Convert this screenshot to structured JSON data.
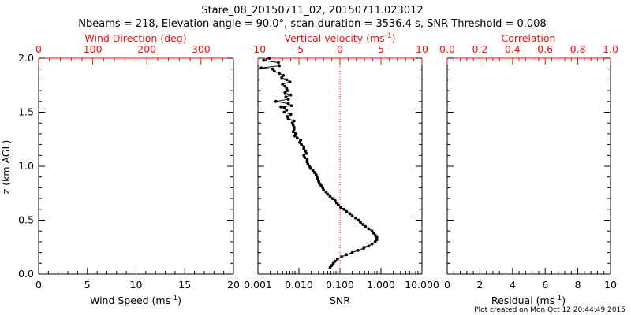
{
  "title_line1": "Stare_08_20150711_02, 20150711.023012",
  "title_line2": "Nbeams = 218, Elevation angle = 90.0°, scan duration = 3536.4 s, SNR Threshold = 0.008",
  "footer": "Plot created on Mon Oct 12 20:44:49 2015",
  "colors": {
    "axis": "#000000",
    "top_axis": "#ee1111",
    "zero_line": "#ee1111",
    "profile": "#000000"
  },
  "chart_data": [
    {
      "type": "line",
      "panel": "left",
      "ylabel": "z (km AGL)",
      "ylim": [
        0,
        2.0
      ],
      "yticks": [
        "0.0",
        "0.5",
        "1.0",
        "1.5",
        "2.0"
      ],
      "xlabel": "Wind Speed (ms",
      "xlabel_sup": "-1",
      "xlabel_tail": ")",
      "xlim": [
        0,
        20
      ],
      "xticks": [
        "0",
        "5",
        "10",
        "15",
        "20"
      ],
      "top_label": "Wind Direction (deg)",
      "top_xlim": [
        0,
        360
      ],
      "top_xticks": [
        "0",
        "100",
        "200",
        "300"
      ],
      "series": []
    },
    {
      "type": "line",
      "panel": "middle",
      "xlabel": "SNR",
      "xscale": "log",
      "xlim": [
        0.001,
        10
      ],
      "xticks": [
        "0.001",
        "0.010",
        "0.100",
        "1.000",
        "10.000"
      ],
      "top_label": "Vertical velocity (ms",
      "top_label_sup": "-1",
      "top_label_tail": ")",
      "top_xlim": [
        -10,
        10
      ],
      "top_xticks": [
        "-10",
        "-5",
        "0",
        "5",
        "10"
      ],
      "ylim": [
        0,
        2.0
      ],
      "reference_line_x": 0,
      "series": [
        {
          "axis": "top",
          "points": [
            [
              -8.6,
              2.0
            ],
            [
              -9.3,
              1.98
            ],
            [
              -7.5,
              1.96
            ],
            [
              -7.4,
              1.93
            ],
            [
              -9.6,
              1.91
            ],
            [
              -8.2,
              1.9
            ],
            [
              -8.0,
              1.88
            ],
            [
              -7.4,
              1.86
            ],
            [
              -6.9,
              1.84
            ],
            [
              -7.1,
              1.82
            ],
            [
              -6.5,
              1.8
            ],
            [
              -6.1,
              1.78
            ],
            [
              -7.0,
              1.76
            ],
            [
              -6.7,
              1.74
            ],
            [
              -6.5,
              1.72
            ],
            [
              -6.4,
              1.7
            ],
            [
              -6.7,
              1.68
            ],
            [
              -6.0,
              1.66
            ],
            [
              -6.6,
              1.64
            ],
            [
              -6.3,
              1.62
            ],
            [
              -7.8,
              1.6
            ],
            [
              -6.3,
              1.58
            ],
            [
              -5.9,
              1.56
            ],
            [
              -7.2,
              1.55
            ],
            [
              -6.8,
              1.54
            ],
            [
              -6.5,
              1.52
            ],
            [
              -6.8,
              1.5
            ],
            [
              -6.0,
              1.48
            ],
            [
              -6.4,
              1.46
            ],
            [
              -6.3,
              1.44
            ],
            [
              -5.6,
              1.42
            ],
            [
              -5.8,
              1.4
            ],
            [
              -5.7,
              1.38
            ],
            [
              -5.6,
              1.36
            ],
            [
              -5.6,
              1.34
            ],
            [
              -5.7,
              1.32
            ],
            [
              -5.4,
              1.3
            ],
            [
              -5.5,
              1.28
            ],
            [
              -5.2,
              1.26
            ],
            [
              -4.8,
              1.24
            ],
            [
              -4.9,
              1.22
            ],
            [
              -4.7,
              1.2
            ],
            [
              -4.4,
              1.18
            ],
            [
              -4.4,
              1.16
            ],
            [
              -4.2,
              1.14
            ],
            [
              -4.1,
              1.12
            ],
            [
              -4.4,
              1.1
            ],
            [
              -4.3,
              1.08
            ],
            [
              -4.0,
              1.06
            ],
            [
              -4.0,
              1.04
            ],
            [
              -3.9,
              1.02
            ],
            [
              -3.7,
              1.0
            ],
            [
              -3.6,
              0.98
            ],
            [
              -3.3,
              0.96
            ],
            [
              -3.1,
              0.94
            ],
            [
              -2.9,
              0.92
            ],
            [
              -2.8,
              0.9
            ],
            [
              -2.7,
              0.88
            ],
            [
              -2.6,
              0.86
            ],
            [
              -2.5,
              0.84
            ],
            [
              -2.3,
              0.82
            ],
            [
              -2.1,
              0.8
            ],
            [
              -2.0,
              0.78
            ],
            [
              -1.7,
              0.76
            ],
            [
              -1.5,
              0.74
            ],
            [
              -1.2,
              0.72
            ],
            [
              -0.9,
              0.7
            ],
            [
              -0.6,
              0.68
            ],
            [
              -0.4,
              0.66
            ],
            [
              -0.2,
              0.64
            ],
            [
              0.1,
              0.62
            ],
            [
              0.5,
              0.6
            ],
            [
              0.8,
              0.58
            ],
            [
              1.2,
              0.56
            ],
            [
              1.5,
              0.54
            ],
            [
              1.9,
              0.52
            ],
            [
              2.3,
              0.5
            ],
            [
              2.5,
              0.48
            ],
            [
              2.8,
              0.46
            ],
            [
              3.1,
              0.44
            ],
            [
              3.5,
              0.42
            ],
            [
              3.9,
              0.4
            ],
            [
              4.1,
              0.38
            ],
            [
              4.3,
              0.36
            ],
            [
              4.5,
              0.34
            ],
            [
              4.5,
              0.32
            ],
            [
              4.3,
              0.3
            ],
            [
              3.9,
              0.28
            ],
            [
              3.5,
              0.26
            ],
            [
              2.9,
              0.24
            ],
            [
              2.2,
              0.22
            ],
            [
              1.5,
              0.2
            ],
            [
              0.8,
              0.18
            ],
            [
              0.2,
              0.16
            ],
            [
              -0.3,
              0.14
            ],
            [
              -0.6,
              0.12
            ],
            [
              -0.8,
              0.1
            ],
            [
              -1.0,
              0.08
            ],
            [
              -1.2,
              0.06
            ]
          ]
        }
      ]
    },
    {
      "type": "line",
      "panel": "right",
      "xlabel": "Residual (ms",
      "xlabel_sup": "-1",
      "xlabel_tail": ")",
      "xlim": [
        0,
        10
      ],
      "xticks": [
        "0",
        "2",
        "4",
        "6",
        "8",
        "10"
      ],
      "top_label": "Correlation",
      "top_xlim": [
        0,
        1
      ],
      "top_xticks": [
        "0.0",
        "0.2",
        "0.4",
        "0.6",
        "0.8",
        "1.0"
      ],
      "ylim": [
        0,
        2.0
      ],
      "series": []
    }
  ]
}
